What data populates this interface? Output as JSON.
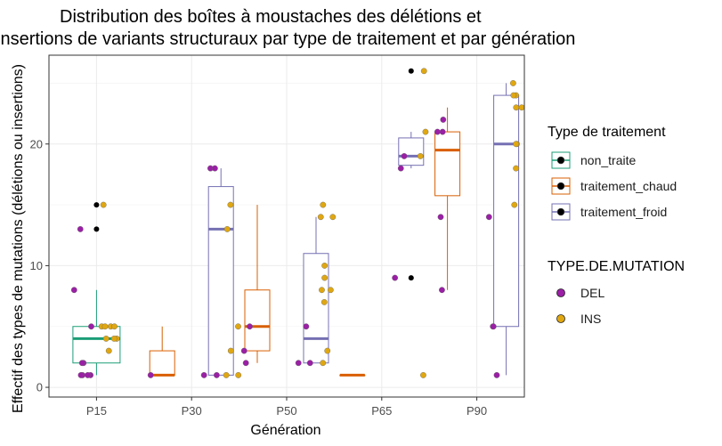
{
  "chart_data": {
    "type": "box",
    "title": "Distribution des boîtes à moustaches des délétions et insertions de variants structuraux  par type de traitement et par génération",
    "title_lines": [
      "Distribution des boîtes à moustaches des délétions et",
      "insertions de variants structuraux  par type de traitement et par génération"
    ],
    "xlabel": "Génération",
    "ylabel": "Effectif des types de mutations (délétions ou insertions)",
    "categories": [
      "P15",
      "P30",
      "P50",
      "P65",
      "P90"
    ],
    "y_ticks": [
      0,
      10,
      20
    ],
    "ylim": [
      -0.8,
      27.3
    ],
    "grid": true,
    "colors": {
      "non_traite": "#1b9e77",
      "traitement_chaud": "#d95f02",
      "traitement_froid": "#7570b3",
      "DEL": "#9b1fa6",
      "INS": "#e0a711"
    },
    "legend_traitement": {
      "title": "Type de traitement",
      "items": [
        "non_traite",
        "traitement_chaud",
        "traitement_froid"
      ]
    },
    "legend_mutation": {
      "title": "TYPE.DE.MUTATION",
      "items": [
        "DEL",
        "INS"
      ]
    },
    "boxes": [
      {
        "category": "P15",
        "treatment": "non_traite",
        "lower": 1,
        "q1": 2,
        "median": 4,
        "q3": 5,
        "upper": 8,
        "outliers": [
          13,
          15
        ]
      },
      {
        "category": "P30",
        "treatment": "traitement_chaud",
        "lower": 1,
        "q1": 1,
        "median": 1,
        "q3": 3,
        "upper": 5,
        "outliers": []
      },
      {
        "category": "P30",
        "treatment": "traitement_froid",
        "lower": 1,
        "q1": 1,
        "median": 13,
        "q3": 16.5,
        "upper": 18,
        "outliers": []
      },
      {
        "category": "P50",
        "treatment": "traitement_chaud",
        "lower": 2,
        "q1": 3,
        "median": 5,
        "q3": 8,
        "upper": 15,
        "outliers": []
      },
      {
        "category": "P50",
        "treatment": "traitement_froid",
        "lower": 2,
        "q1": 2,
        "median": 4,
        "q3": 11,
        "upper": 14,
        "outliers": []
      },
      {
        "category": "P65",
        "treatment": "traitement_chaud",
        "lower": 1,
        "q1": 1,
        "median": 1,
        "q3": 1,
        "upper": 1,
        "outliers": []
      },
      {
        "category": "P65",
        "treatment": "traitement_froid",
        "lower": 18,
        "q1": 18.25,
        "median": 19,
        "q3": 20.5,
        "upper": 21,
        "outliers": [
          9,
          26
        ]
      },
      {
        "category": "P90",
        "treatment": "traitement_chaud",
        "lower": 8,
        "q1": 15.75,
        "median": 19.5,
        "q3": 21,
        "upper": 23,
        "outliers": []
      },
      {
        "category": "P90",
        "treatment": "traitement_froid",
        "lower": 1,
        "q1": 5,
        "median": 20,
        "q3": 24,
        "upper": 25,
        "outliers": []
      }
    ],
    "points": [
      {
        "category": "P15",
        "treatment": "non_traite",
        "type": "DEL",
        "values": [
          1,
          1,
          1,
          1,
          2,
          2,
          5,
          8,
          13
        ]
      },
      {
        "category": "P15",
        "treatment": "non_traite",
        "type": "INS",
        "values": [
          3,
          4,
          4,
          4,
          5,
          5,
          5,
          5,
          15
        ]
      },
      {
        "category": "P30",
        "treatment": "traitement_chaud",
        "type": "DEL",
        "values": [
          1
        ]
      },
      {
        "category": "P30",
        "treatment": "traitement_froid",
        "type": "DEL",
        "values": [
          18,
          18,
          1,
          1
        ]
      },
      {
        "category": "P30",
        "treatment": "traitement_froid",
        "type": "INS",
        "values": [
          1,
          1,
          3,
          5,
          13,
          15
        ]
      },
      {
        "category": "P50",
        "treatment": "traitement_chaud",
        "type": "DEL",
        "values": [
          2,
          3,
          5
        ]
      },
      {
        "category": "P50",
        "treatment": "traitement_froid",
        "type": "DEL",
        "values": [
          2,
          2,
          5
        ]
      },
      {
        "category": "P50",
        "treatment": "traitement_froid",
        "type": "INS",
        "values": [
          2,
          3,
          7,
          8,
          8,
          9,
          10,
          14,
          14,
          15
        ]
      },
      {
        "category": "P65",
        "treatment": "traitement_froid",
        "type": "DEL",
        "values": [
          9,
          18,
          19
        ]
      },
      {
        "category": "P65",
        "treatment": "traitement_froid",
        "type": "INS",
        "values": [
          1,
          19,
          21,
          26
        ]
      },
      {
        "category": "P90",
        "treatment": "traitement_chaud",
        "type": "DEL",
        "values": [
          8,
          14,
          21,
          21,
          22
        ]
      },
      {
        "category": "P90",
        "treatment": "traitement_froid",
        "type": "DEL",
        "values": [
          1,
          5,
          5,
          14
        ]
      },
      {
        "category": "P90",
        "treatment": "traitement_froid",
        "type": "INS",
        "values": [
          15,
          18,
          20,
          20,
          23,
          23,
          24,
          24,
          25
        ]
      }
    ]
  }
}
